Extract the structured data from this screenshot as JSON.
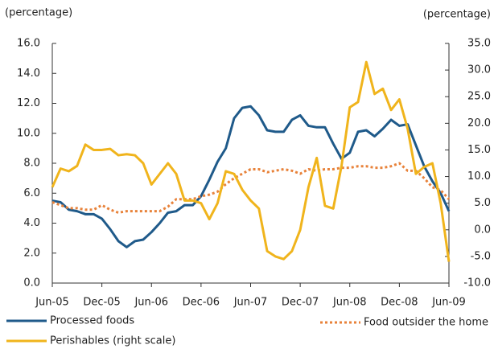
{
  "chart_data": {
    "type": "line",
    "y_label": "(percentage)",
    "y2_label": "(percentage)",
    "categories": [
      "Jun-05",
      null,
      null,
      null,
      null,
      null,
      "Dec-05",
      null,
      null,
      null,
      null,
      null,
      "Jun-06",
      null,
      null,
      null,
      null,
      null,
      "Dec-06",
      null,
      null,
      null,
      null,
      null,
      "Jun-07",
      null,
      null,
      null,
      null,
      null,
      "Dec-07",
      null,
      null,
      null,
      null,
      null,
      "Jun-08",
      null,
      null,
      null,
      null,
      null,
      "Dec-08",
      null,
      null,
      null,
      null,
      null,
      "Jun-09"
    ],
    "series": [
      {
        "name": "Processed foods",
        "color": "#1f5a8a",
        "style": "solid",
        "values": [
          5.5,
          5.4,
          4.9,
          4.8,
          4.6,
          4.6,
          4.3,
          3.6,
          2.8,
          2.4,
          2.8,
          2.9,
          3.4,
          4.0,
          4.7,
          4.8,
          5.2,
          5.2,
          5.8,
          6.9,
          8.1,
          9.0,
          11.0,
          11.7,
          11.8,
          11.2,
          10.2,
          10.1,
          10.1,
          10.9,
          11.2,
          10.5,
          10.4,
          10.4,
          9.3,
          8.3,
          8.7,
          10.1,
          10.2,
          9.8,
          10.3,
          10.9,
          10.5,
          10.6,
          9.2,
          7.8,
          6.8,
          6.0,
          4.8
        ]
      },
      {
        "name": "Food outsider the home",
        "color": "#e8823a",
        "style": "dotted",
        "values": [
          5.4,
          5.2,
          5.0,
          5.0,
          4.9,
          4.9,
          5.2,
          4.9,
          4.7,
          4.8,
          4.8,
          4.8,
          4.8,
          4.8,
          5.1,
          5.6,
          5.6,
          5.6,
          5.8,
          5.9,
          6.1,
          6.6,
          7.0,
          7.3,
          7.6,
          7.6,
          7.4,
          7.5,
          7.6,
          7.5,
          7.3,
          7.6,
          7.5,
          7.6,
          7.6,
          7.7,
          7.7,
          7.8,
          7.8,
          7.7,
          7.7,
          7.8,
          8.0,
          7.5,
          7.5,
          7.0,
          6.4,
          6.2,
          5.6
        ]
      },
      {
        "name": "Perishables (right scale)",
        "color": "#f0b41c",
        "style": "solid",
        "axis": "y2",
        "values": [
          8,
          11.5,
          11,
          12,
          16,
          15,
          15,
          15.2,
          14,
          14.2,
          14,
          12.5,
          8.5,
          10.5,
          12.5,
          10.5,
          5.5,
          5.5,
          5,
          2,
          5,
          11,
          10.5,
          7.5,
          5.5,
          4,
          -4,
          -5,
          -5.5,
          -4,
          0,
          8,
          13.5,
          4.5,
          4,
          12,
          23,
          24,
          31.5,
          25.5,
          26.5,
          22.5,
          24.5,
          19,
          10.5,
          11.8,
          12.5,
          5,
          -6
        ]
      }
    ],
    "ylim": [
      0,
      16
    ],
    "yticks": [
      {
        "value": 0,
        "label": "0.0"
      },
      {
        "value": 2,
        "label": "2.0"
      },
      {
        "value": 4,
        "label": "4.0"
      },
      {
        "value": 6,
        "label": "6.0"
      },
      {
        "value": 8,
        "label": "8.0"
      },
      {
        "value": 10,
        "label": "10.0"
      },
      {
        "value": 12,
        "label": "12.0"
      },
      {
        "value": 14,
        "label": "14.0"
      },
      {
        "value": 16,
        "label": "16.0"
      }
    ],
    "y2lim": [
      -10,
      35
    ],
    "y2ticks": [
      {
        "value": -10,
        "label": "-10.0"
      },
      {
        "value": -5,
        "label": "-5.0"
      },
      {
        "value": 0,
        "label": "0.0"
      },
      {
        "value": 5,
        "label": "5.0"
      },
      {
        "value": 10,
        "label": "10.0"
      },
      {
        "value": 15,
        "label": "15.0"
      },
      {
        "value": 20,
        "label": "20.0"
      },
      {
        "value": 25,
        "label": "25.0"
      },
      {
        "value": 30,
        "label": "30.0"
      },
      {
        "value": 35,
        "label": "35.0"
      }
    ],
    "grid": false
  }
}
